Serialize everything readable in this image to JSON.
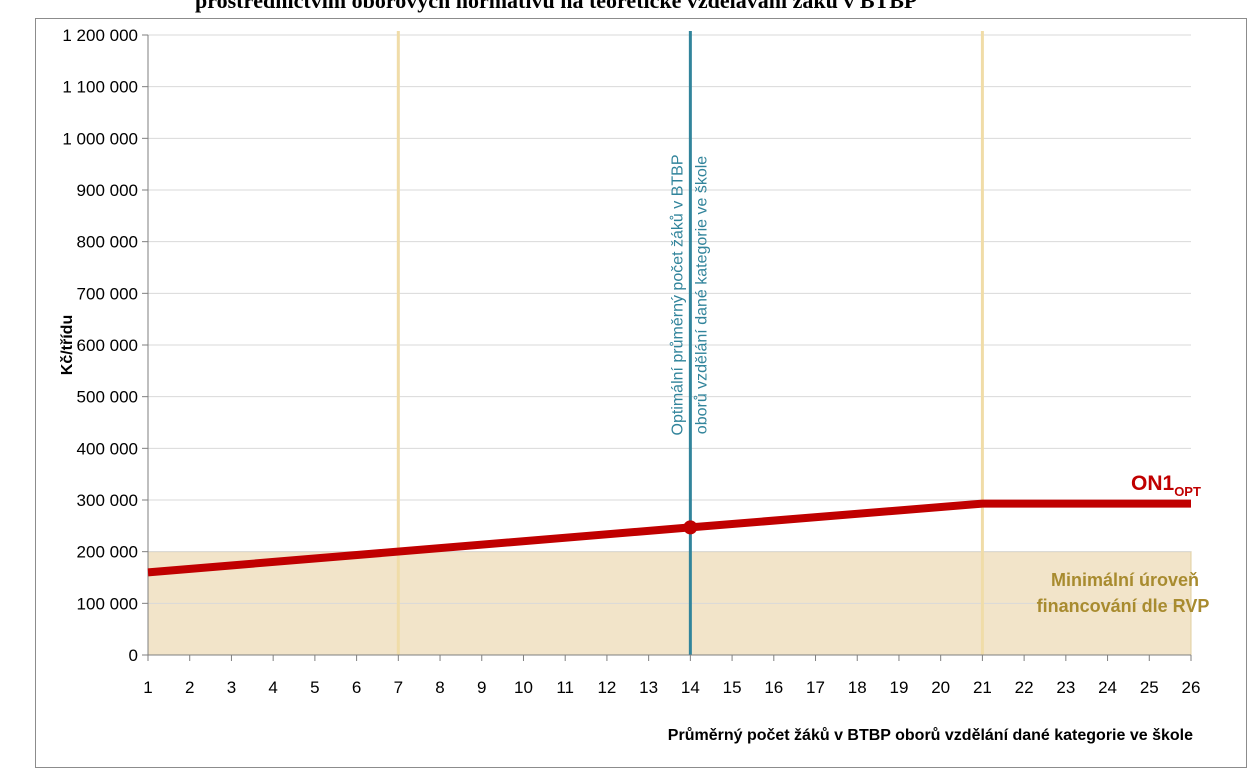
{
  "page": {
    "title": "prostřednictvím oborových normativů na teoretické vzdělávání žáků v BTBP"
  },
  "chart_data": {
    "type": "line",
    "title": "prostřednictvím oborových normativů na teoretické vzdělávání žáků v BTBP",
    "xlabel": "Průměrný počet žáků v BTBP  oborů vzdělání dané kategorie ve škole",
    "ylabel": "Kč/třídu",
    "xlim": [
      1,
      26
    ],
    "ylim": [
      0,
      1200000
    ],
    "grid": "horizontal",
    "x_ticks": [
      1,
      2,
      3,
      4,
      5,
      6,
      7,
      8,
      9,
      10,
      11,
      12,
      13,
      14,
      15,
      16,
      17,
      18,
      19,
      20,
      21,
      22,
      23,
      24,
      25,
      26
    ],
    "y_ticks": [
      0,
      100000,
      200000,
      300000,
      400000,
      500000,
      600000,
      700000,
      800000,
      900000,
      1000000,
      1100000,
      1200000
    ],
    "y_tick_labels": [
      "0",
      "100 000",
      "200 000",
      "300 000",
      "400 000",
      "500 000",
      "600 000",
      "700 000",
      "800 000",
      "900 000",
      "1 000 000",
      "1 100 000",
      "1 200 000"
    ],
    "series": [
      {
        "name": "ON1",
        "name_subscript": "OPT",
        "color": "#c00000",
        "x": [
          1,
          14,
          21,
          26
        ],
        "y": [
          160000,
          247000,
          293000,
          293000
        ],
        "marker": {
          "x": 14,
          "y": 247000
        }
      }
    ],
    "shaded_region": {
      "label_line1": "Minimální úroveň",
      "label_line2": "financování dle RVP",
      "y_max": 200000,
      "x_range": [
        1,
        26
      ],
      "fill_color": "#f2e4c9",
      "text_color": "#a88b2f"
    },
    "vertical_lines": [
      {
        "x": 7,
        "color": "#f0dca8",
        "label": ""
      },
      {
        "x": 14,
        "color": "#31849b",
        "label_line1": "Optimální průměrný počet žáků v BTBP",
        "label_line2": "oborů vzdělání dané kategorie ve škole"
      },
      {
        "x": 21,
        "color": "#f0dca8",
        "label": ""
      }
    ]
  }
}
